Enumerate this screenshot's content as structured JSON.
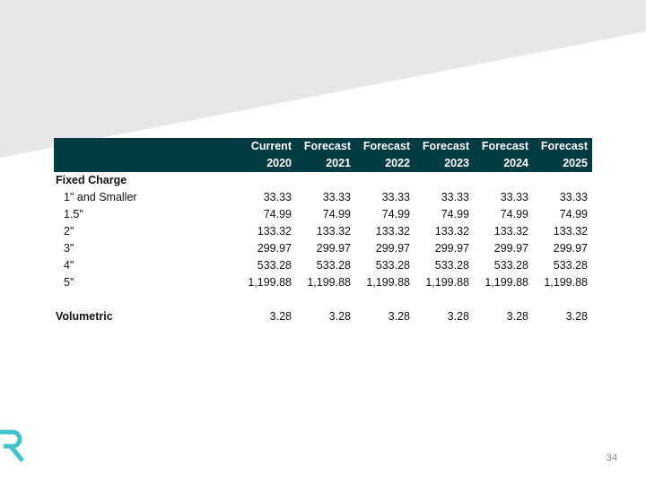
{
  "table": {
    "header_top": [
      "Current",
      "Forecast",
      "Forecast",
      "Forecast",
      "Forecast",
      "Forecast"
    ],
    "header_years": [
      "2020",
      "2021",
      "2022",
      "2023",
      "2024",
      "2025"
    ],
    "fixed_charge_label": "Fixed Charge",
    "rows": [
      {
        "label": "1\" and Smaller",
        "values": [
          "33.33",
          "33.33",
          "33.33",
          "33.33",
          "33.33",
          "33.33"
        ]
      },
      {
        "label": "1.5\"",
        "values": [
          "74.99",
          "74.99",
          "74.99",
          "74.99",
          "74.99",
          "74.99"
        ]
      },
      {
        "label": "2\"",
        "values": [
          "133.32",
          "133.32",
          "133.32",
          "133.32",
          "133.32",
          "133.32"
        ]
      },
      {
        "label": "3\"",
        "values": [
          "299.97",
          "299.97",
          "299.97",
          "299.97",
          "299.97",
          "299.97"
        ]
      },
      {
        "label": "4\"",
        "values": [
          "533.28",
          "533.28",
          "533.28",
          "533.28",
          "533.28",
          "533.28"
        ]
      },
      {
        "label": "5\"",
        "values": [
          "1,199.88",
          "1,199.88",
          "1,199.88",
          "1,199.88",
          "1,199.88",
          "1,199.88"
        ]
      }
    ],
    "volumetric": {
      "label": "Volumetric",
      "values": [
        "3.28",
        "3.28",
        "3.28",
        "3.28",
        "3.28",
        "3.28"
      ]
    }
  },
  "page_number": "34",
  "colors": {
    "header_bg": "#053c44",
    "logo": "#3fc4cf",
    "band": "#e6e7e8"
  }
}
